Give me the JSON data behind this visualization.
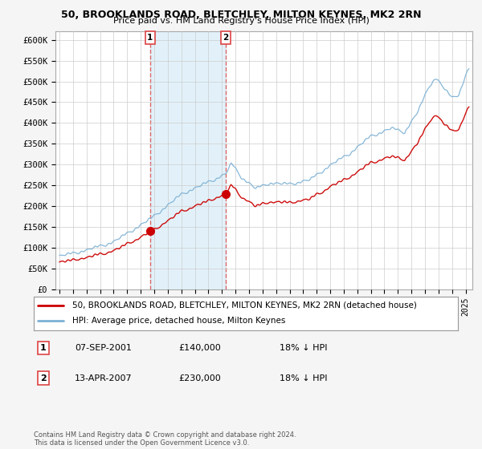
{
  "title1": "50, BROOKLANDS ROAD, BLETCHLEY, MILTON KEYNES, MK2 2RN",
  "title2": "Price paid vs. HM Land Registry's House Price Index (HPI)",
  "ylabel_ticks": [
    "£0",
    "£50K",
    "£100K",
    "£150K",
    "£200K",
    "£250K",
    "£300K",
    "£350K",
    "£400K",
    "£450K",
    "£500K",
    "£550K",
    "£600K"
  ],
  "ytick_vals": [
    0,
    50000,
    100000,
    150000,
    200000,
    250000,
    300000,
    350000,
    400000,
    450000,
    500000,
    550000,
    600000
  ],
  "ylim": [
    0,
    620000
  ],
  "xlim_start": 1994.7,
  "xlim_end": 2025.5,
  "sale1_x": 2001.69,
  "sale1_price": 140000,
  "sale2_x": 2007.28,
  "sale2_price": 230000,
  "legend_line1": "50, BROOKLANDS ROAD, BLETCHLEY, MILTON KEYNES, MK2 2RN (detached house)",
  "legend_line2": "HPI: Average price, detached house, Milton Keynes",
  "annot1_date": "07-SEP-2001",
  "annot1_price": "£140,000",
  "annot1_hpi": "18% ↓ HPI",
  "annot2_date": "13-APR-2007",
  "annot2_price": "£230,000",
  "annot2_hpi": "18% ↓ HPI",
  "footer": "Contains HM Land Registry data © Crown copyright and database right 2024.\nThis data is licensed under the Open Government Licence v3.0.",
  "red_color": "#cc0000",
  "blue_color": "#7ab0d4",
  "shade_color": "#d0e8f5",
  "dashed_color": "#dd4444",
  "grid_color": "#cccccc",
  "fig_bg": "#f5f5f5",
  "plot_bg": "#ffffff"
}
